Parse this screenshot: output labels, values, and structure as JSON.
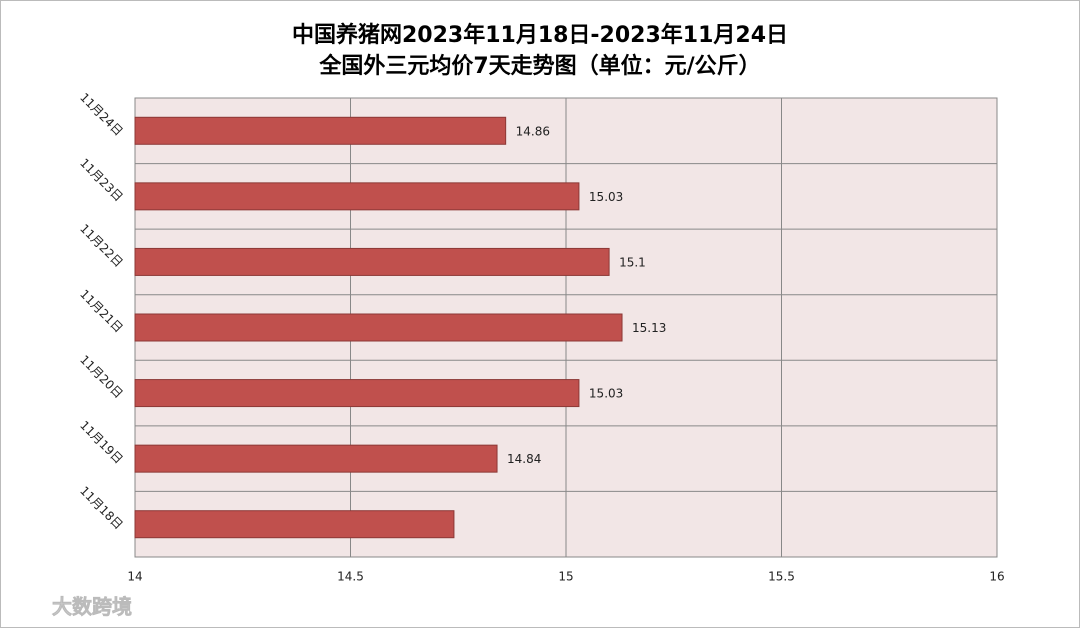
{
  "chart_data": {
    "type": "bar",
    "orientation": "horizontal",
    "title": "中国养猪网2023年11月18日-2023年11月24日",
    "subtitle": "全国外三元均价7天走势图（单位：元/公斤）",
    "categories": [
      "11月24日",
      "11月23日",
      "11月22日",
      "11月21日",
      "11月20日",
      "11月19日",
      "11月18日"
    ],
    "values": [
      14.86,
      15.03,
      15.1,
      15.13,
      15.03,
      14.84,
      14.74
    ],
    "value_labels": [
      "14.86",
      "15.03",
      "15.1",
      "15.13",
      "15.03",
      "14.84",
      null
    ],
    "color": "#c0504d",
    "xlim": [
      14,
      16
    ],
    "xticks": [
      14,
      14.5,
      15,
      15.5,
      16
    ],
    "grid": true
  },
  "watermark": "大数跨境"
}
